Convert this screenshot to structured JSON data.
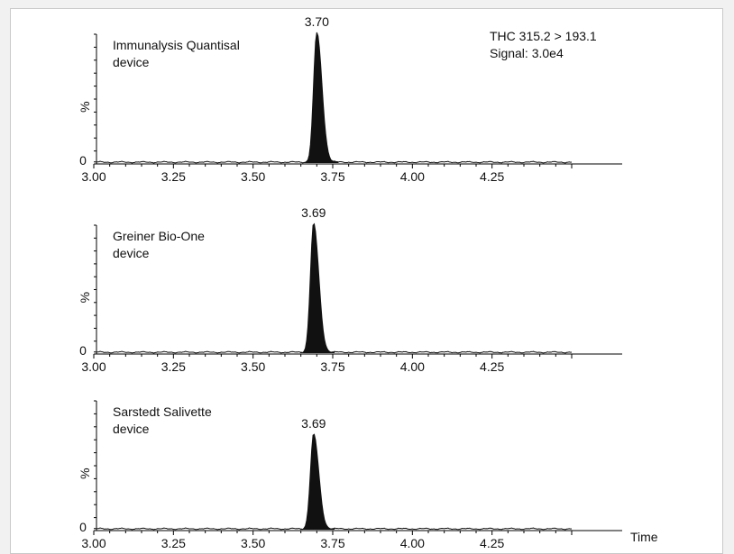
{
  "annotation": {
    "line1": "THC 315.2 > 193.1",
    "line2": "Signal: 3.0e4"
  },
  "x_axis_unit_label": "Time",
  "chart_data": [
    {
      "type": "line",
      "title_lines": [
        "Immunalysis Quantisal",
        "device"
      ],
      "ylabel": "%",
      "xlim": [
        3.0,
        4.5
      ],
      "ylim": [
        0,
        100
      ],
      "xticks": [
        "3.00",
        "3.25",
        "3.50",
        "3.75",
        "4.00",
        "4.25"
      ],
      "peak": {
        "rt": 3.7,
        "label": "3.70",
        "height_pct": 100,
        "sigma_left": 0.01,
        "sigma_right": 0.016
      },
      "y_zero_label": "0",
      "baseline_noise_pct": 1.0
    },
    {
      "type": "line",
      "title_lines": [
        "Greiner Bio-One",
        "device"
      ],
      "ylabel": "%",
      "xlim": [
        3.0,
        4.5
      ],
      "ylim": [
        0,
        100
      ],
      "xticks": [
        "3.00",
        "3.25",
        "3.50",
        "3.75",
        "4.00",
        "4.25"
      ],
      "peak": {
        "rt": 3.69,
        "label": "3.69",
        "height_pct": 100,
        "sigma_left": 0.01,
        "sigma_right": 0.016
      },
      "y_zero_label": "0",
      "baseline_noise_pct": 1.0
    },
    {
      "type": "line",
      "title_lines": [
        "Sarstedt Salivette",
        "device"
      ],
      "ylabel": "%",
      "xlim": [
        3.0,
        4.5
      ],
      "ylim": [
        0,
        100
      ],
      "xticks": [
        "3.00",
        "3.25",
        "3.50",
        "3.75",
        "4.00",
        "4.25"
      ],
      "peak": {
        "rt": 3.69,
        "label": "3.69",
        "height_pct": 73,
        "sigma_left": 0.01,
        "sigma_right": 0.016
      },
      "y_zero_label": "0",
      "baseline_noise_pct": 1.0
    }
  ]
}
